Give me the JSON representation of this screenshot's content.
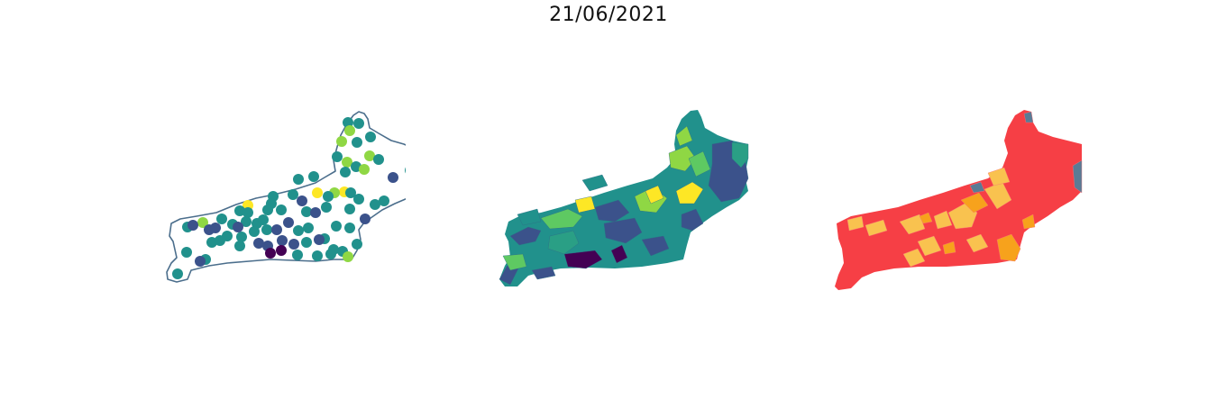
{
  "title": "21/06/2021",
  "colors": {
    "outline": "#4b6e8c",
    "viridis": [
      "#440154",
      "#3b528b",
      "#21918c",
      "#2a9f85",
      "#5ec962",
      "#8fd744",
      "#fde725"
    ],
    "risk": {
      "high": "#f63f45",
      "mid": "#f9c24f",
      "orange": "#f7a21c",
      "nodata": "#5a7b95"
    }
  },
  "maps": [
    {
      "name": "point-map",
      "type": "scatter-markers"
    },
    {
      "name": "choropleth-map",
      "type": "choropleth"
    },
    {
      "name": "risk-map",
      "type": "categorical-choropleth"
    }
  ]
}
